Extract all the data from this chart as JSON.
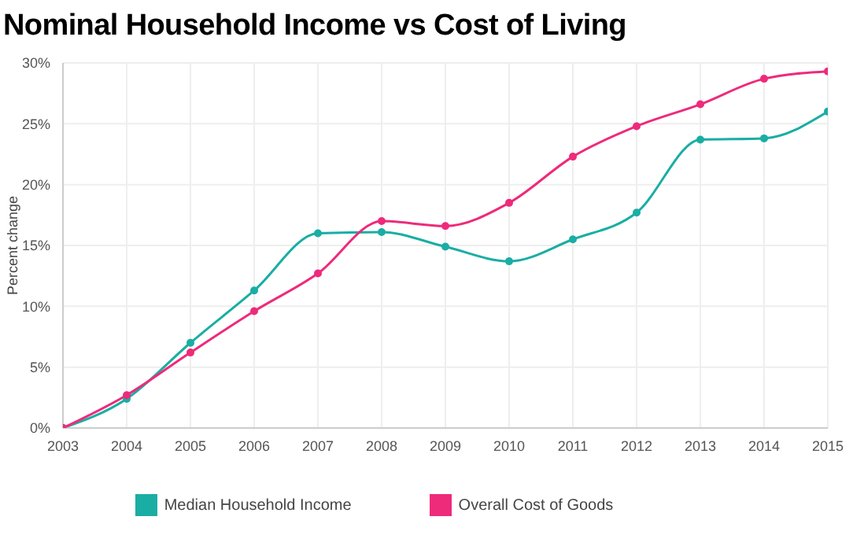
{
  "chart_data": {
    "type": "line",
    "title": "Nominal Household Income vs Cost of Living",
    "ylabel": "Percent change",
    "x": [
      2003,
      2004,
      2005,
      2006,
      2007,
      2008,
      2009,
      2010,
      2011,
      2012,
      2013,
      2014,
      2015
    ],
    "xlim": [
      2003,
      2015
    ],
    "xticks": [
      2003,
      2004,
      2005,
      2006,
      2007,
      2008,
      2009,
      2010,
      2011,
      2012,
      2013,
      2014,
      2015
    ],
    "ylim": [
      0,
      30
    ],
    "yticks": [
      {
        "value": 0,
        "label": "0%"
      },
      {
        "value": 5,
        "label": "5%"
      },
      {
        "value": 10,
        "label": "10%"
      },
      {
        "value": 15,
        "label": "15%"
      },
      {
        "value": 20,
        "label": "20%"
      },
      {
        "value": 25,
        "label": "25%"
      },
      {
        "value": 30,
        "label": "30%"
      }
    ],
    "series": [
      {
        "name": "Median Household Income",
        "color": "#1aada4",
        "values": [
          0,
          2.4,
          7.0,
          11.3,
          16.0,
          16.1,
          14.9,
          13.7,
          15.5,
          17.7,
          23.7,
          23.8,
          26.0
        ]
      },
      {
        "name": "Overall Cost of Goods",
        "color": "#ee2a7b",
        "values": [
          0,
          2.7,
          6.2,
          9.6,
          12.7,
          17.0,
          16.6,
          18.5,
          22.3,
          24.8,
          26.6,
          28.7,
          29.3
        ]
      }
    ],
    "grid": true,
    "legend": "bottom",
    "marker": "circle",
    "line_style": "solid"
  }
}
